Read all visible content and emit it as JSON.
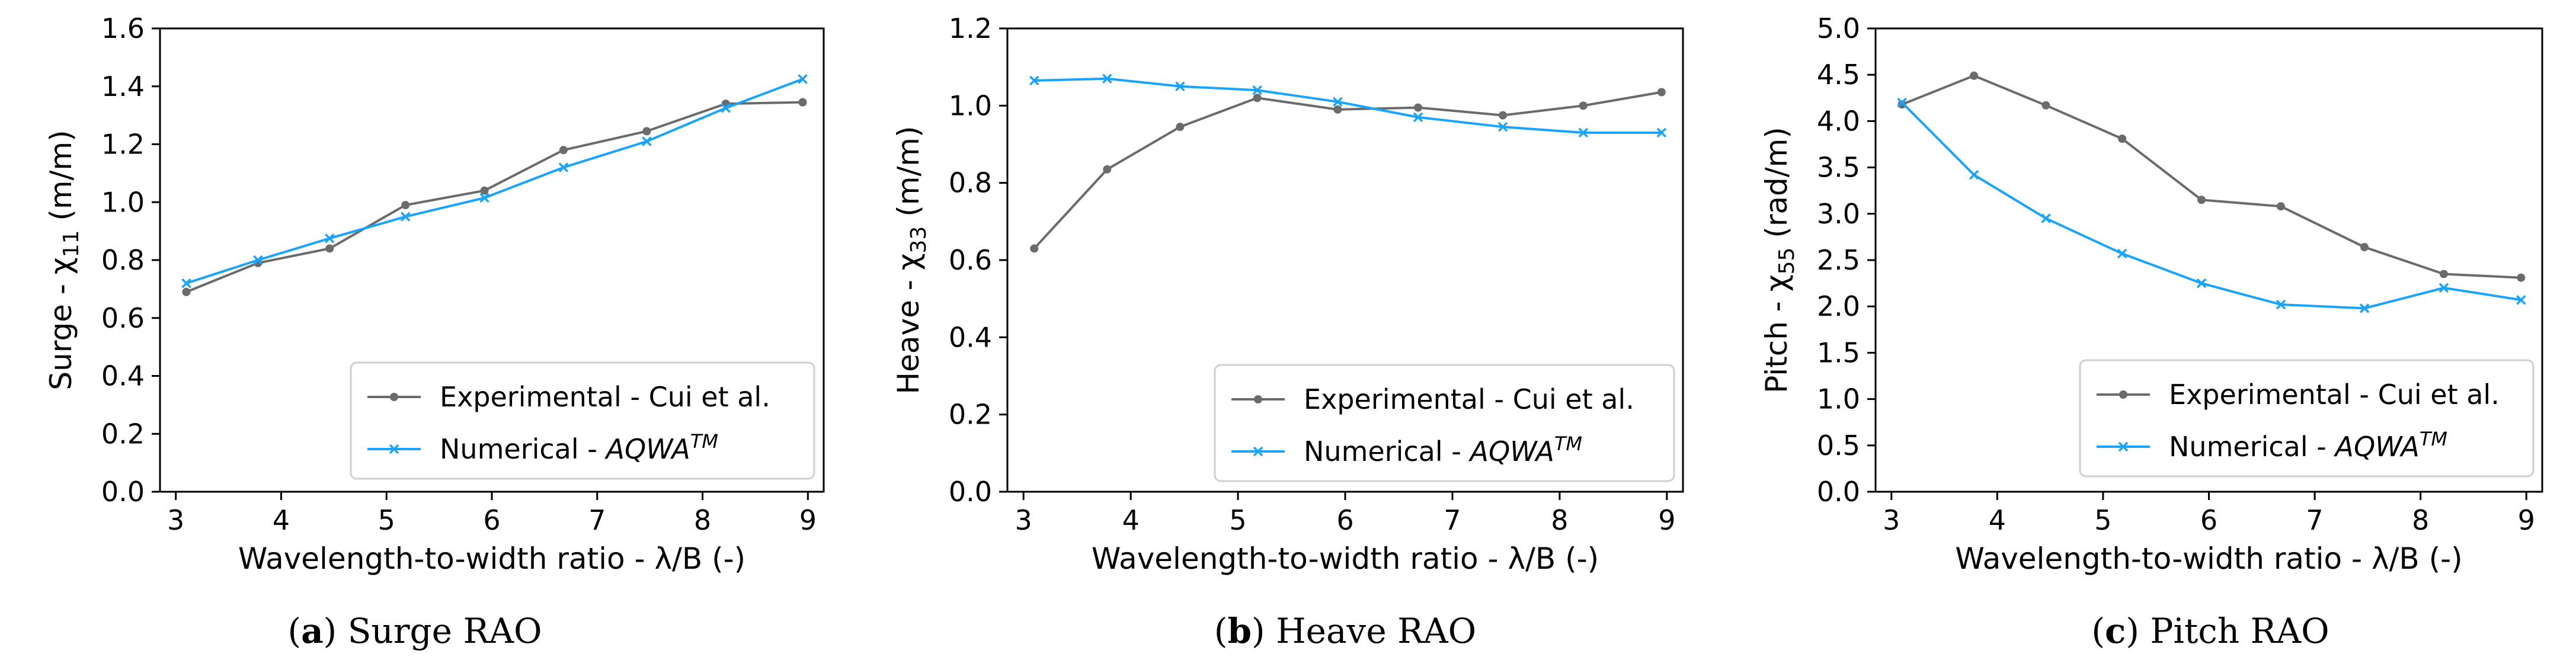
{
  "chart_data": [
    {
      "type": "line",
      "caption_letter": "a",
      "caption_text": "Surge RAO",
      "xlabel": "Wavelength-to-width ratio -  λ/B (-)",
      "ylabel": "Surge - χ",
      "ylabel_sub": "11",
      "ylabel_unit": " (m/m)",
      "xlim": [
        2.85,
        9.15
      ],
      "ylim": [
        0.0,
        1.6
      ],
      "xticks": [
        3,
        4,
        5,
        6,
        7,
        8,
        9
      ],
      "yticks": [
        0.0,
        0.2,
        0.4,
        0.6,
        0.8,
        1.0,
        1.2,
        1.4,
        1.6
      ],
      "legend_position": "lower-right",
      "series": [
        {
          "name": "Experimental - Cui et al.",
          "color": "#6b6b6b",
          "marker": "dot",
          "x": [
            3.1,
            3.78,
            4.46,
            5.18,
            5.93,
            6.68,
            7.47,
            8.22,
            8.95
          ],
          "y": [
            0.69,
            0.79,
            0.84,
            0.99,
            1.04,
            1.18,
            1.245,
            1.34,
            1.345
          ]
        },
        {
          "name": "Numerical - ",
          "name_italic": "AQWA",
          "name_sup": "TM",
          "color": "#1aa3ff",
          "marker": "x",
          "x": [
            3.1,
            3.78,
            4.46,
            5.18,
            5.93,
            6.68,
            7.47,
            8.22,
            8.95
          ],
          "y": [
            0.72,
            0.8,
            0.875,
            0.95,
            1.015,
            1.12,
            1.21,
            1.325,
            1.425
          ]
        }
      ]
    },
    {
      "type": "line",
      "caption_letter": "b",
      "caption_text": "Heave RAO",
      "xlabel": "Wavelength-to-width ratio -  λ/B (-)",
      "ylabel": "Heave - χ",
      "ylabel_sub": "33",
      "ylabel_unit": " (m/m)",
      "xlim": [
        2.85,
        9.15
      ],
      "ylim": [
        0.0,
        1.2
      ],
      "xticks": [
        3,
        4,
        5,
        6,
        7,
        8,
        9
      ],
      "yticks": [
        0.0,
        0.2,
        0.4,
        0.6,
        0.8,
        1.0,
        1.2
      ],
      "legend_position": "lower-right",
      "series": [
        {
          "name": "Experimental - Cui et al.",
          "color": "#6b6b6b",
          "marker": "dot",
          "x": [
            3.1,
            3.78,
            4.46,
            5.18,
            5.93,
            6.68,
            7.47,
            8.22,
            8.95
          ],
          "y": [
            0.63,
            0.835,
            0.945,
            1.02,
            0.99,
            0.995,
            0.975,
            1.0,
            1.035
          ]
        },
        {
          "name": "Numerical - ",
          "name_italic": "AQWA",
          "name_sup": "TM",
          "color": "#1aa3ff",
          "marker": "x",
          "x": [
            3.1,
            3.78,
            4.46,
            5.18,
            5.93,
            6.68,
            7.47,
            8.22,
            8.95
          ],
          "y": [
            1.065,
            1.07,
            1.05,
            1.04,
            1.01,
            0.97,
            0.945,
            0.93,
            0.93
          ]
        }
      ]
    },
    {
      "type": "line",
      "caption_letter": "c",
      "caption_text": "Pitch RAO",
      "xlabel": "Wavelength-to-width ratio -  λ/B (-)",
      "ylabel": "Pitch - χ",
      "ylabel_sub": "55",
      "ylabel_unit": " (rad/m)",
      "xlim": [
        2.85,
        9.15
      ],
      "ylim": [
        0.0,
        5.0
      ],
      "xticks": [
        3,
        4,
        5,
        6,
        7,
        8,
        9
      ],
      "yticks": [
        0.0,
        0.5,
        1.0,
        1.5,
        2.0,
        2.5,
        3.0,
        3.5,
        4.0,
        4.5,
        5.0
      ],
      "legend_position": "lower-right",
      "series": [
        {
          "name": "Experimental - Cui et al.",
          "color": "#6b6b6b",
          "marker": "dot",
          "x": [
            3.1,
            3.78,
            4.46,
            5.18,
            5.93,
            6.68,
            7.47,
            8.22,
            8.95
          ],
          "y": [
            4.18,
            4.49,
            4.17,
            3.81,
            3.15,
            3.08,
            2.64,
            2.35,
            2.31
          ]
        },
        {
          "name": "Numerical - ",
          "name_italic": "AQWA",
          "name_sup": "TM",
          "color": "#1aa3ff",
          "marker": "x",
          "x": [
            3.1,
            3.78,
            4.46,
            5.18,
            5.93,
            6.68,
            7.47,
            8.22,
            8.95
          ],
          "y": [
            4.2,
            3.42,
            2.95,
            2.57,
            2.25,
            2.02,
            1.98,
            2.2,
            2.07
          ]
        }
      ]
    }
  ]
}
